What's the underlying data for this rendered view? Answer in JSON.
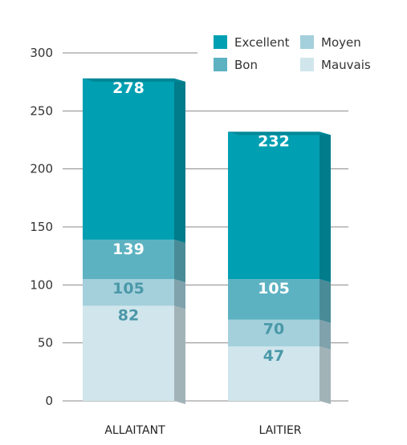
{
  "chart_data": {
    "type": "bar",
    "stacked": true,
    "categories": [
      "ALLAITANT",
      "LAITIER"
    ],
    "stack_order": [
      "Mauvais",
      "Moyen",
      "Bon",
      "Excellent"
    ],
    "data_labels": "cumulative top of each segment",
    "series": [
      {
        "name": "Mauvais",
        "values": [
          82,
          47
        ],
        "color": "#d0e6ec"
      },
      {
        "name": "Moyen",
        "values": [
          23,
          23
        ],
        "color": "#a4d0dc"
      },
      {
        "name": "Bon",
        "values": [
          34,
          35
        ],
        "color": "#5db2c2"
      },
      {
        "name": "Excellent",
        "values": [
          139,
          127
        ],
        "color": "#009fb2"
      }
    ],
    "data_label_values": {
      "ALLAITANT": [
        82,
        105,
        139,
        278
      ],
      "LAITIER": [
        47,
        70,
        105,
        232
      ]
    },
    "legend": {
      "placement": "top-right",
      "entries": [
        "Excellent",
        "Moyen",
        "Bon",
        "Mauvais"
      ]
    },
    "ylim": [
      0,
      300
    ],
    "yticks": [
      0,
      50,
      100,
      150,
      200,
      250,
      300
    ],
    "grid": true,
    "title": "",
    "xlabel": "",
    "ylabel": ""
  }
}
